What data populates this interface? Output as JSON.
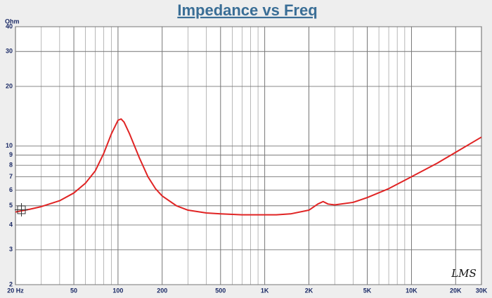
{
  "chart_data": {
    "type": "line",
    "title": "Impedance vs Freq",
    "ylabel": "Ohm",
    "watermark": "LMS",
    "x": [
      20,
      25,
      30,
      40,
      50,
      60,
      70,
      80,
      90,
      100,
      105,
      110,
      120,
      140,
      160,
      180,
      200,
      250,
      300,
      400,
      500,
      700,
      1000,
      1200,
      1500,
      2000,
      2300,
      2500,
      2700,
      3000,
      4000,
      5000,
      7000,
      10000,
      15000,
      20000,
      30000
    ],
    "values": [
      4.65,
      4.8,
      4.95,
      5.3,
      5.8,
      6.5,
      7.5,
      9.2,
      11.5,
      13.5,
      13.7,
      13.2,
      11.5,
      8.7,
      7.0,
      6.1,
      5.6,
      5.0,
      4.75,
      4.6,
      4.55,
      4.5,
      4.5,
      4.5,
      4.55,
      4.75,
      5.1,
      5.25,
      5.1,
      5.05,
      5.2,
      5.5,
      6.1,
      7.0,
      8.2,
      9.3,
      11.1
    ],
    "color": "#e02424",
    "xscale": "log",
    "yscale": "log",
    "xlim": [
      20,
      30000
    ],
    "ylim": [
      2,
      40
    ],
    "xticks": [
      {
        "value": 20,
        "label": "20 Hz"
      },
      50,
      100,
      200,
      500,
      {
        "value": 1000,
        "label": "1K"
      },
      {
        "value": 2000,
        "label": "2K"
      },
      {
        "value": 5000,
        "label": "5K"
      },
      {
        "value": 10000,
        "label": "10K"
      },
      {
        "value": 20000,
        "label": "20K"
      },
      {
        "value": 30000,
        "label": "30K"
      }
    ],
    "x_minor_grid": [
      30,
      40,
      60,
      70,
      80,
      90,
      300,
      400,
      600,
      700,
      800,
      900,
      3000,
      4000,
      6000,
      7000,
      8000,
      9000
    ],
    "yticks": [
      2,
      3,
      4,
      5,
      6,
      7,
      8,
      9,
      10,
      20,
      30,
      40
    ],
    "grid": true
  }
}
